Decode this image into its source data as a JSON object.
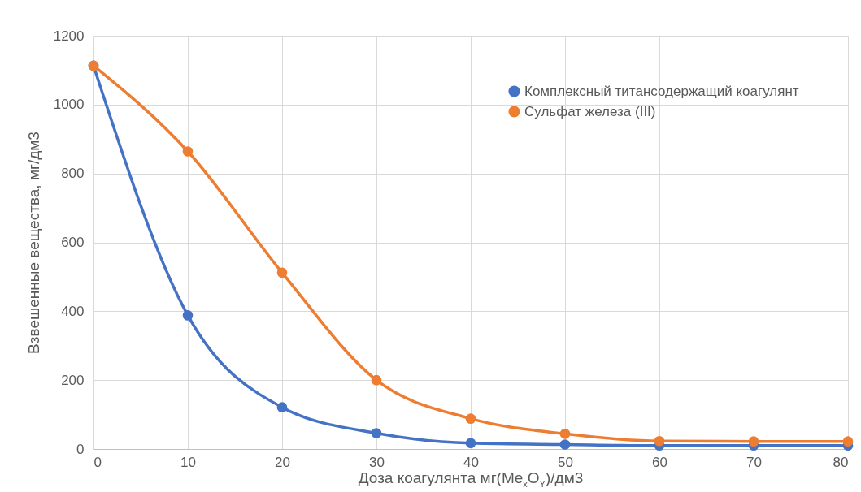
{
  "chart_data": {
    "type": "line",
    "xlabel": "Доза коагулянта мг(Me$_{x}$O$_{Y}$)/дм3",
    "ylabel": "Взвешенные вещества, мг/дм3",
    "x": [
      0,
      10,
      20,
      30,
      40,
      50,
      60,
      70,
      80
    ],
    "series": [
      {
        "name": "Комплексный титансодержащий коагулянт",
        "color": "#4472c4",
        "values": [
          1113,
          388,
          121,
          46,
          17,
          13,
          10,
          10,
          10
        ]
      },
      {
        "name": "Сульфат железа (III)",
        "color": "#ed7d31",
        "values": [
          1113,
          864,
          512,
          200,
          88,
          44,
          23,
          22,
          22
        ]
      }
    ],
    "xlim": [
      0,
      80
    ],
    "xticks": [
      0,
      10,
      20,
      30,
      40,
      50,
      60,
      70,
      80
    ],
    "ylim": [
      0,
      1200
    ],
    "yticks": [
      0,
      200,
      400,
      600,
      800,
      1000,
      1200
    ],
    "grid": true,
    "legend": "top right",
    "marker": "circle"
  }
}
